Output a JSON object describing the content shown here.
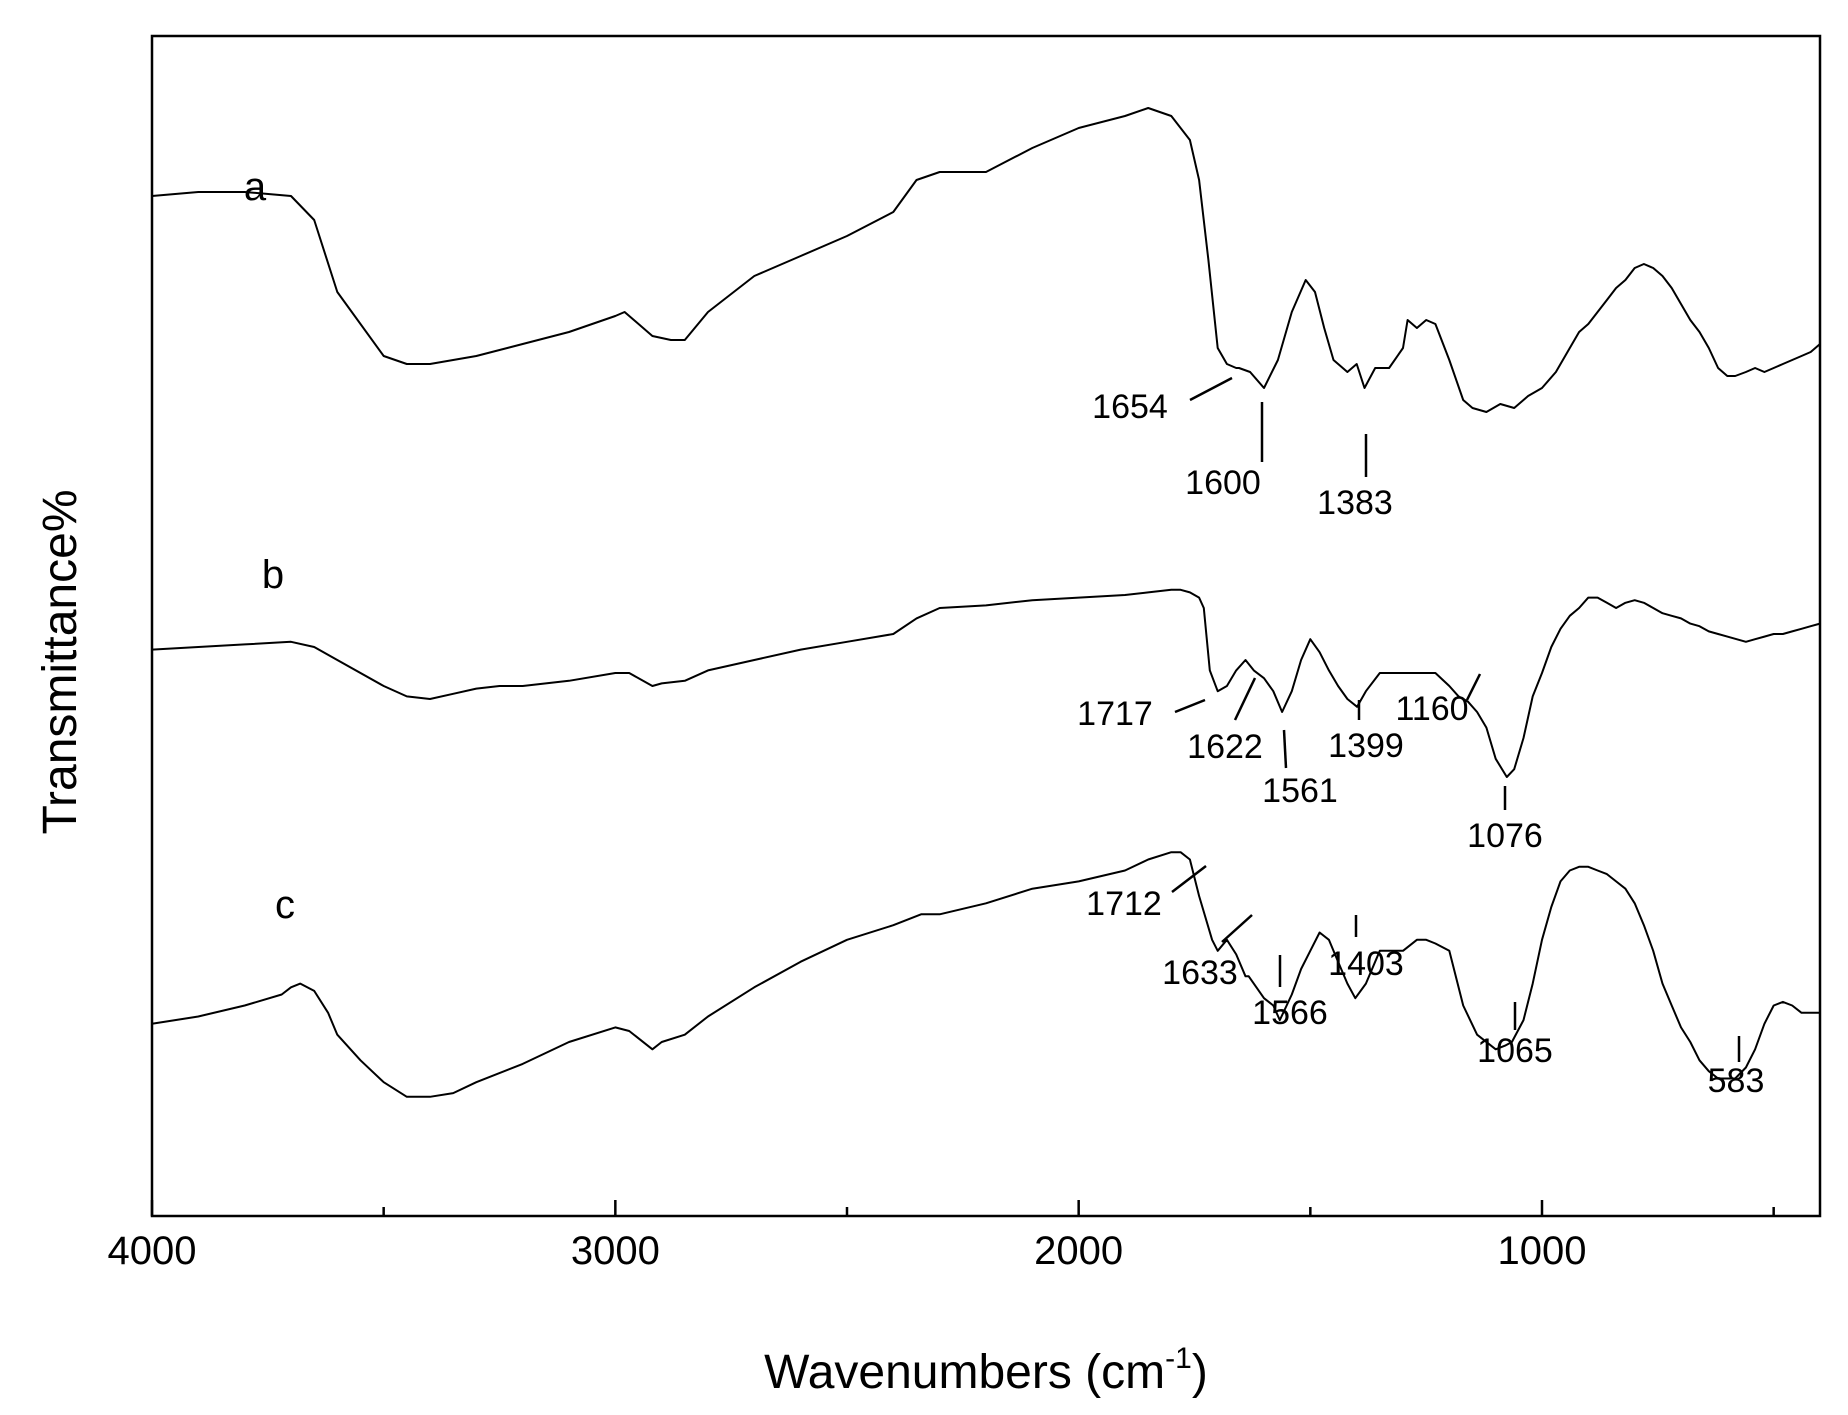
{
  "chart_data": {
    "type": "line",
    "title": "",
    "xlabel": "Wavenumbers (cm",
    "xlabel_sup": "-1",
    "xlabel_close": ")",
    "ylabel": "Transmittance%",
    "xlim": [
      4000,
      400
    ],
    "x_reversed": true,
    "x_ticks": [
      4000,
      3000,
      2000,
      1000
    ],
    "x_tick_labels": [
      "4000",
      "3000",
      "2000",
      "1000"
    ],
    "x_minor_ticks": [
      3500,
      2500,
      1500,
      500
    ],
    "y_ticks_shown": false,
    "grid": false,
    "legend": "none",
    "line_color": "#000000",
    "series": [
      {
        "name": "a",
        "x": [
          4000,
          3900,
          3800,
          3700,
          3650,
          3600,
          3500,
          3450,
          3400,
          3300,
          3200,
          3100,
          3000,
          2980,
          2920,
          2880,
          2850,
          2800,
          2700,
          2600,
          2500,
          2400,
          2350,
          2300,
          2200,
          2100,
          2000,
          1900,
          1850,
          1800,
          1760,
          1740,
          1720,
          1700,
          1680,
          1660,
          1654,
          1630,
          1600,
          1570,
          1540,
          1510,
          1490,
          1470,
          1450,
          1420,
          1400,
          1383,
          1360,
          1330,
          1300,
          1290,
          1270,
          1250,
          1230,
          1200,
          1170,
          1150,
          1120,
          1090,
          1060,
          1030,
          1000,
          970,
          940,
          920,
          900,
          880,
          860,
          840,
          820,
          800,
          780,
          760,
          740,
          720,
          700,
          680,
          660,
          640,
          620,
          600,
          583,
          560,
          540,
          520,
          500,
          480,
          460,
          440,
          420,
          400
        ],
        "y": [
          76,
          77,
          77,
          76,
          70,
          52,
          36,
          34,
          34,
          36,
          39,
          42,
          46,
          47,
          41,
          40,
          40,
          47,
          56,
          61,
          66,
          72,
          80,
          82,
          82,
          88,
          93,
          96,
          98,
          96,
          90,
          80,
          60,
          38,
          34,
          33,
          33,
          32,
          28,
          35,
          47,
          55,
          52,
          43,
          35,
          32,
          34,
          28,
          33,
          33,
          38,
          45,
          43,
          45,
          44,
          35,
          25,
          23,
          22,
          24,
          23,
          26,
          28,
          32,
          38,
          42,
          44,
          47,
          50,
          53,
          55,
          58,
          59,
          58,
          56,
          53,
          49,
          45,
          42,
          38,
          33,
          31,
          31,
          32,
          33,
          32,
          33,
          34,
          35,
          36,
          37,
          39
        ]
      },
      {
        "name": "b",
        "x": [
          4000,
          3900,
          3800,
          3700,
          3650,
          3600,
          3500,
          3450,
          3400,
          3350,
          3300,
          3250,
          3200,
          3100,
          3000,
          2970,
          2920,
          2900,
          2850,
          2800,
          2700,
          2600,
          2500,
          2400,
          2350,
          2300,
          2200,
          2100,
          2000,
          1900,
          1850,
          1800,
          1780,
          1760,
          1740,
          1730,
          1717,
          1700,
          1680,
          1660,
          1640,
          1622,
          1600,
          1580,
          1561,
          1540,
          1520,
          1500,
          1480,
          1460,
          1440,
          1420,
          1399,
          1380,
          1350,
          1300,
          1270,
          1250,
          1230,
          1200,
          1180,
          1160,
          1140,
          1120,
          1100,
          1076,
          1060,
          1040,
          1020,
          1000,
          980,
          960,
          940,
          920,
          900,
          880,
          860,
          840,
          820,
          800,
          780,
          760,
          740,
          720,
          700,
          680,
          660,
          640,
          620,
          600,
          580,
          560,
          540,
          520,
          500,
          480,
          460,
          440,
          420,
          400
        ],
        "y": [
          54,
          55,
          56,
          57,
          55,
          50,
          40,
          36,
          35,
          37,
          39,
          40,
          40,
          42,
          45,
          45,
          40,
          41,
          42,
          46,
          50,
          54,
          57,
          60,
          66,
          70,
          71,
          73,
          74,
          75,
          76,
          77,
          77,
          76,
          74,
          70,
          46,
          38,
          40,
          46,
          50,
          46,
          43,
          38,
          30,
          38,
          50,
          58,
          53,
          46,
          40,
          35,
          32,
          38,
          45,
          45,
          45,
          45,
          45,
          40,
          36,
          34,
          30,
          24,
          12,
          5,
          8,
          20,
          36,
          45,
          55,
          62,
          67,
          70,
          74,
          74,
          72,
          70,
          72,
          73,
          72,
          70,
          68,
          67,
          66,
          64,
          63,
          61,
          60,
          59,
          58,
          57,
          58,
          59,
          60,
          60,
          61,
          62,
          63,
          64
        ]
      },
      {
        "name": "c",
        "x": [
          4000,
          3900,
          3800,
          3720,
          3700,
          3680,
          3650,
          3620,
          3600,
          3550,
          3500,
          3450,
          3400,
          3350,
          3300,
          3200,
          3100,
          3000,
          2970,
          2920,
          2900,
          2850,
          2800,
          2700,
          2600,
          2500,
          2400,
          2340,
          2300,
          2200,
          2100,
          2000,
          1900,
          1850,
          1800,
          1780,
          1760,
          1740,
          1712,
          1700,
          1680,
          1660,
          1640,
          1633,
          1600,
          1580,
          1566,
          1540,
          1520,
          1500,
          1480,
          1460,
          1440,
          1420,
          1403,
          1380,
          1350,
          1300,
          1270,
          1250,
          1230,
          1200,
          1170,
          1140,
          1100,
          1080,
          1065,
          1040,
          1020,
          1000,
          980,
          960,
          940,
          920,
          900,
          880,
          860,
          840,
          820,
          800,
          780,
          760,
          740,
          720,
          700,
          680,
          660,
          640,
          620,
          600,
          583,
          560,
          540,
          520,
          500,
          480,
          460,
          440,
          420,
          400
        ],
        "y": [
          25,
          27,
          30,
          33,
          35,
          36,
          34,
          28,
          22,
          15,
          9,
          5,
          5,
          6,
          9,
          14,
          20,
          24,
          23,
          18,
          20,
          22,
          27,
          35,
          42,
          48,
          52,
          55,
          55,
          58,
          62,
          64,
          67,
          70,
          72,
          72,
          70,
          60,
          48,
          45,
          48,
          44,
          38,
          38,
          32,
          30,
          26,
          33,
          40,
          45,
          50,
          48,
          42,
          36,
          32,
          36,
          45,
          45,
          48,
          48,
          47,
          45,
          30,
          22,
          18,
          19,
          20,
          26,
          36,
          48,
          57,
          64,
          67,
          68,
          68,
          67,
          66,
          64,
          62,
          58,
          52,
          45,
          36,
          30,
          24,
          20,
          15,
          12,
          10,
          10,
          10,
          13,
          18,
          25,
          30,
          31,
          30,
          28,
          28,
          28
        ]
      }
    ],
    "series_labels": [
      "a",
      "b",
      "c"
    ],
    "peak_labels": [
      {
        "text": "1654",
        "series": "a",
        "x": 1654
      },
      {
        "text": "1600",
        "series": "a",
        "x": 1600
      },
      {
        "text": "1383",
        "series": "a",
        "x": 1383
      },
      {
        "text": "1717",
        "series": "b",
        "x": 1717
      },
      {
        "text": "1622",
        "series": "b",
        "x": 1622
      },
      {
        "text": "1561",
        "series": "b",
        "x": 1561
      },
      {
        "text": "1399",
        "series": "b",
        "x": 1399
      },
      {
        "text": "1160",
        "series": "b",
        "x": 1160
      },
      {
        "text": "1076",
        "series": "b",
        "x": 1076
      },
      {
        "text": "1712",
        "series": "c",
        "x": 1712
      },
      {
        "text": "1633",
        "series": "c",
        "x": 1633
      },
      {
        "text": "1566",
        "series": "c",
        "x": 1566
      },
      {
        "text": "1403",
        "series": "c",
        "x": 1403
      },
      {
        "text": "1065",
        "series": "c",
        "x": 1065
      },
      {
        "text": "583",
        "series": "c",
        "x": 583
      }
    ]
  }
}
